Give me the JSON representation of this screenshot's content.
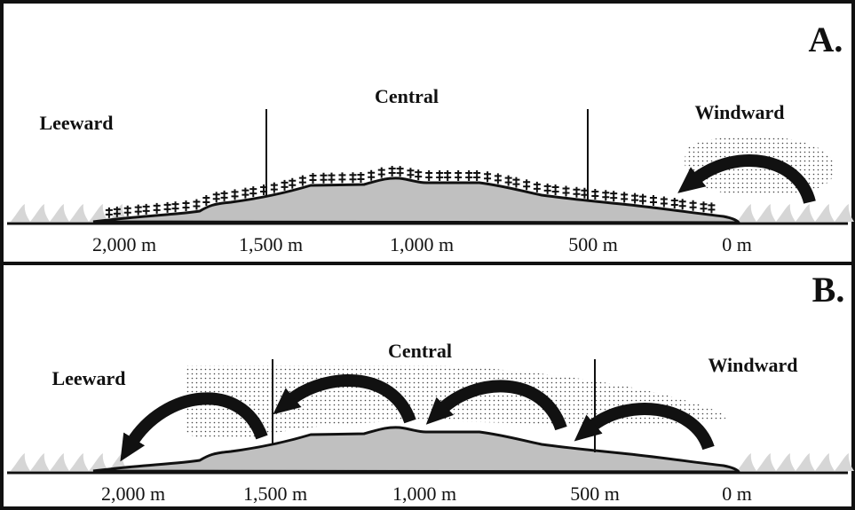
{
  "panels": [
    {
      "label": "A.",
      "zones": {
        "leeward": "Leeward",
        "central": "Central",
        "windward": "Windward"
      },
      "scale": [
        "2,000 m",
        "1,500 m",
        "1,000 m",
        "500 m",
        "0 m"
      ]
    },
    {
      "label": "B.",
      "zones": {
        "leeward": "Leeward",
        "central": "Central",
        "windward": "Windward"
      },
      "scale": [
        "2,000 m",
        "1,500 m",
        "1,000 m",
        "500 m",
        "0 m"
      ]
    }
  ]
}
